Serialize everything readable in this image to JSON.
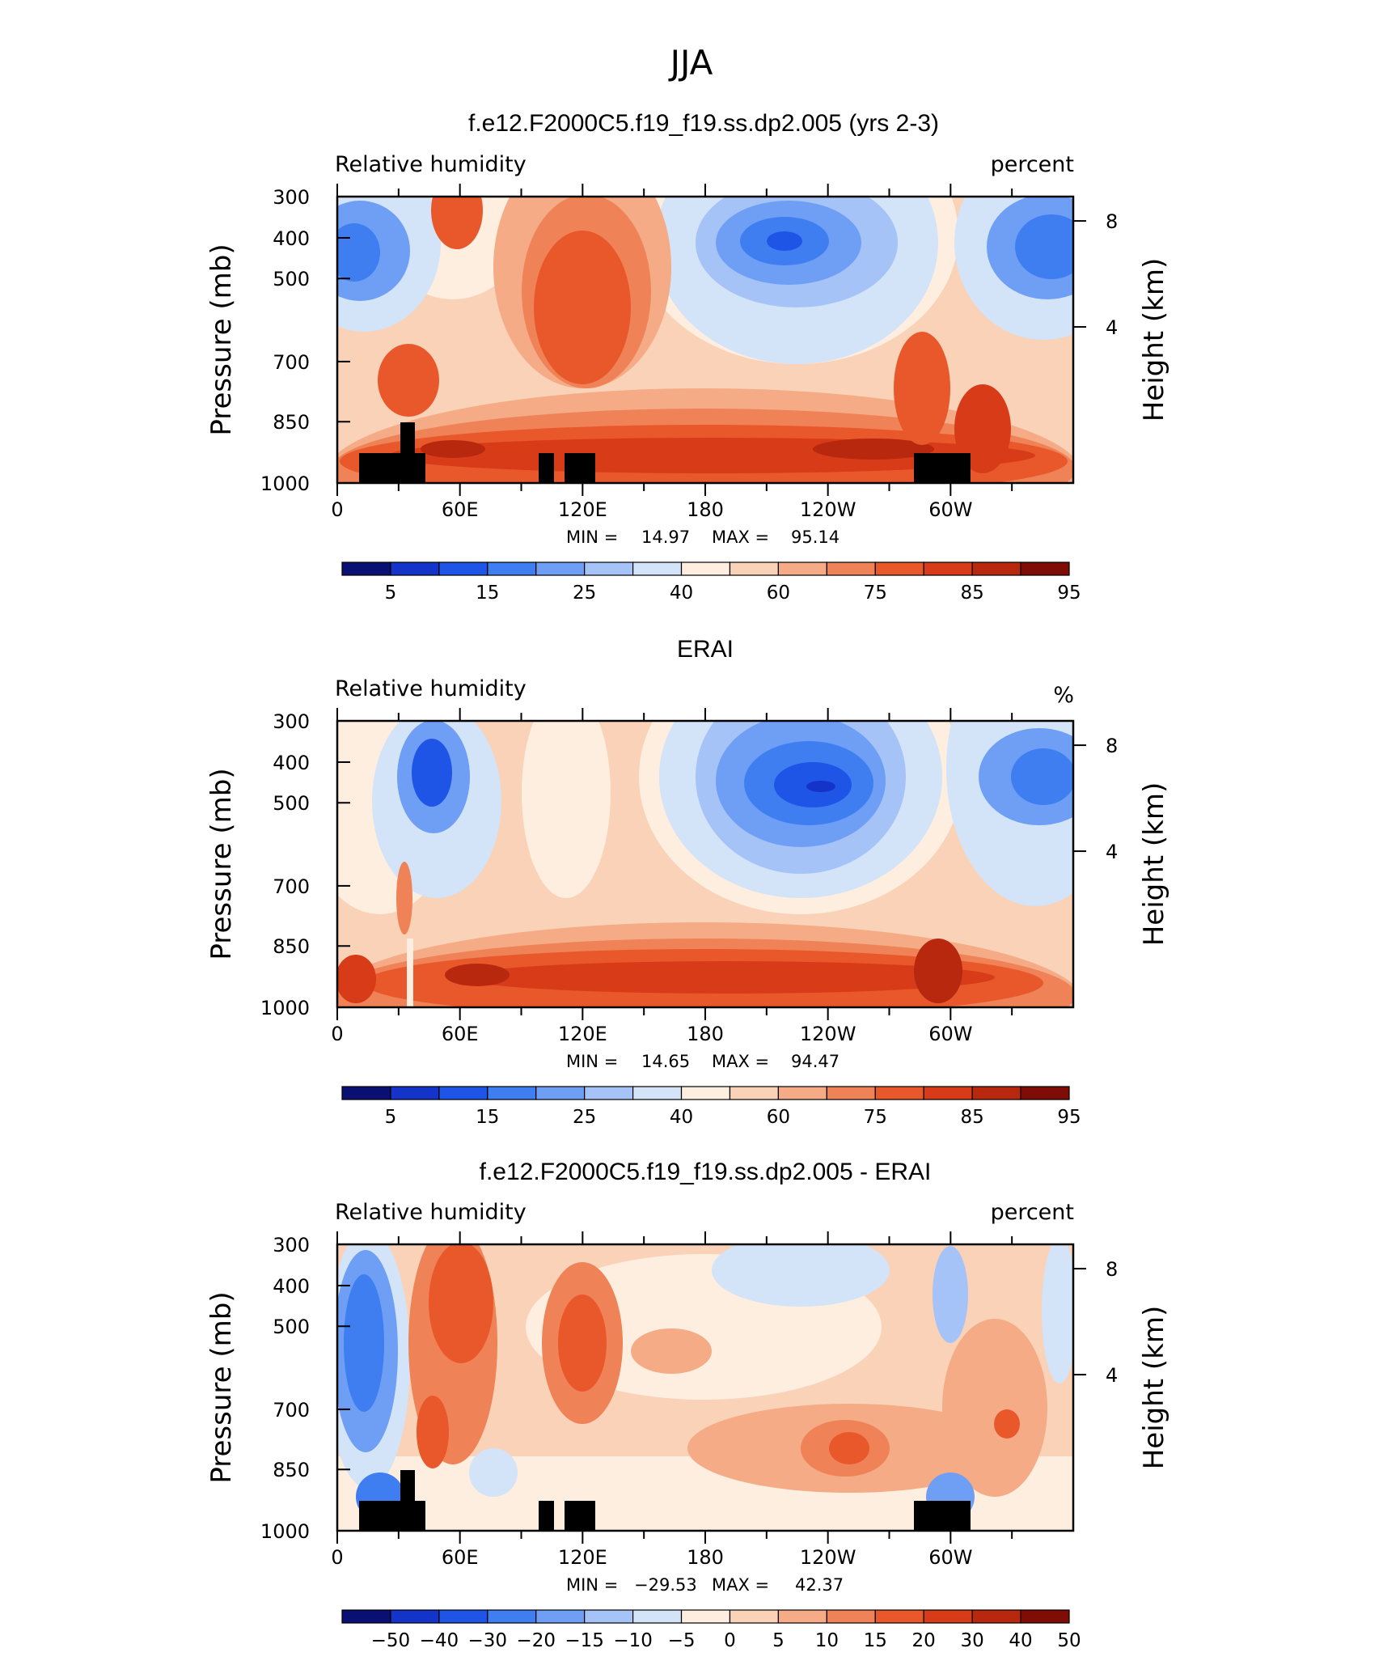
{
  "title": "JJA",
  "chart_data": [
    {
      "type": "heatmap",
      "title": "f.e12.F2000C5.f19_f19.ss.dp2.005 (yrs 2-3)",
      "left_label": "Relative humidity",
      "right_label": "percent",
      "ylabel": "Pressure (mb)",
      "ylabel2": "Height (km)",
      "pressure_ticks": [
        "300",
        "400",
        "500",
        "700",
        "850",
        "1000"
      ],
      "height_ticks": [
        "8",
        "4"
      ],
      "lon_ticks": [
        "0",
        "60E",
        "120E",
        "180",
        "120W",
        "60W"
      ],
      "min_label": "MIN =",
      "min_value": "14.97",
      "max_label": "MAX =",
      "max_value": "95.14",
      "colorbar_labels": [
        "5",
        "15",
        "25",
        "40",
        "60",
        "75",
        "85",
        "95"
      ],
      "colorbar_colors": [
        "#0a0f73",
        "#1433c8",
        "#1f55e6",
        "#3f7ef0",
        "#6f9ff5",
        "#a6c3f7",
        "#d3e3f8",
        "#fdeee0",
        "#fad2b8",
        "#f5ab86",
        "#ef8256",
        "#e9582b",
        "#d83b18",
        "#b7280f",
        "#7f0d06"
      ],
      "value_range": [
        0,
        100
      ]
    },
    {
      "type": "heatmap",
      "title": "ERAI",
      "left_label": "Relative humidity",
      "right_label": "%",
      "ylabel": "Pressure (mb)",
      "ylabel2": "Height (km)",
      "pressure_ticks": [
        "300",
        "400",
        "500",
        "700",
        "850",
        "1000"
      ],
      "height_ticks": [
        "8",
        "4"
      ],
      "lon_ticks": [
        "0",
        "60E",
        "120E",
        "180",
        "120W",
        "60W"
      ],
      "min_label": "MIN =",
      "min_value": "14.65",
      "max_label": "MAX =",
      "max_value": "94.47",
      "colorbar_labels": [
        "5",
        "15",
        "25",
        "40",
        "60",
        "75",
        "85",
        "95"
      ],
      "colorbar_colors": [
        "#0a0f73",
        "#1433c8",
        "#1f55e6",
        "#3f7ef0",
        "#6f9ff5",
        "#a6c3f7",
        "#d3e3f8",
        "#fdeee0",
        "#fad2b8",
        "#f5ab86",
        "#ef8256",
        "#e9582b",
        "#d83b18",
        "#b7280f",
        "#7f0d06"
      ],
      "value_range": [
        0,
        100
      ]
    },
    {
      "type": "heatmap",
      "title": "f.e12.F2000C5.f19_f19.ss.dp2.005 - ERAI",
      "left_label": "Relative humidity",
      "right_label": "percent",
      "ylabel": "Pressure (mb)",
      "ylabel2": "Height (km)",
      "pressure_ticks": [
        "300",
        "400",
        "500",
        "700",
        "850",
        "1000"
      ],
      "height_ticks": [
        "8",
        "4"
      ],
      "lon_ticks": [
        "0",
        "60E",
        "120E",
        "180",
        "120W",
        "60W"
      ],
      "min_label": "MIN =",
      "min_value": "−29.53",
      "max_label": "MAX =",
      "max_value": "42.37",
      "colorbar_labels": [
        "−50",
        "−40",
        "−30",
        "−20",
        "−15",
        "−10",
        "−5",
        "0",
        "5",
        "10",
        "15",
        "20",
        "30",
        "40",
        "50"
      ],
      "colorbar_colors": [
        "#0a0f73",
        "#1433c8",
        "#1f55e6",
        "#3f7ef0",
        "#6f9ff5",
        "#a6c3f7",
        "#d3e3f8",
        "#fdeee0",
        "#fad2b8",
        "#f5ab86",
        "#ef8256",
        "#e9582b",
        "#d83b18",
        "#b7280f",
        "#7f0d06"
      ],
      "value_range": [
        -60,
        60
      ]
    }
  ]
}
